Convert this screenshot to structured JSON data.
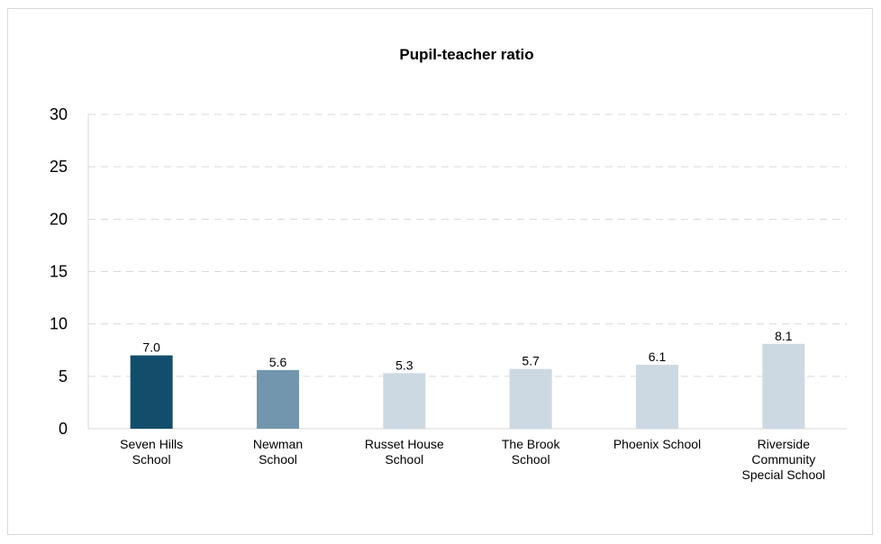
{
  "chart_data": {
    "type": "bar",
    "title": "Pupil-teacher ratio",
    "xlabel": "",
    "ylabel": "",
    "ylim": [
      0,
      30
    ],
    "yticks": [
      0,
      5,
      10,
      15,
      20,
      25,
      30
    ],
    "grid": true,
    "categories": [
      [
        "Seven Hills",
        "School"
      ],
      [
        "Newman",
        "School"
      ],
      [
        "Russet House",
        "School"
      ],
      [
        "The Brook",
        "School"
      ],
      [
        "Phoenix School"
      ],
      [
        "Riverside",
        "Community",
        "Special School"
      ]
    ],
    "values": [
      7.0,
      5.6,
      5.3,
      5.7,
      6.1,
      8.1
    ],
    "value_labels": [
      "7.0",
      "5.6",
      "5.3",
      "5.7",
      "6.1",
      "8.1"
    ],
    "bar_colors": [
      "#124e6c",
      "#7196ae",
      "#cdd9e2",
      "#cdd9e2",
      "#cdd9e2",
      "#cdd9e2"
    ]
  }
}
